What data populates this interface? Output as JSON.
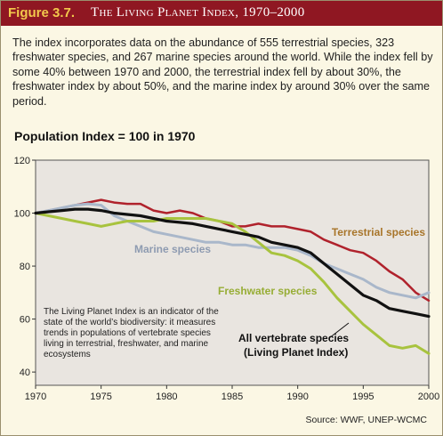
{
  "header": {
    "figure_label": "Figure 3.7.",
    "title": "The Living Planet Index, 1970–2000"
  },
  "description": "The index incorporates data on the abundance of 555 terrestrial species, 323 freshwater species, and 267 marine species around the world. While the index fell by some 40% between 1970 and 2000, the terrestrial index fell by about 30%, the freshwater index by about 50%, and the marine index by around 30% over the same period.",
  "subtitle": "Population Index = 100 in 1970",
  "source": "Source: WWF, UNEP-WCMC",
  "colors": {
    "terrestrial": "#b0222c",
    "marine": "#a9b7ca",
    "freshwater": "#a8c33e",
    "vertebrate": "#111111",
    "plot_background": "#e9e5e0",
    "terrestrial_label": "#a8752a",
    "marine_label": "#8e9bb1",
    "freshwater_label": "#97ad35"
  },
  "chart_data": {
    "type": "line",
    "title": "Population Index = 100 in 1970",
    "xlim": [
      1970,
      2000
    ],
    "ylim": [
      35,
      120
    ],
    "x_ticks": [
      1970,
      1975,
      1980,
      1985,
      1990,
      1995,
      2000
    ],
    "y_ticks": [
      40,
      60,
      80,
      100,
      120
    ],
    "grid": false,
    "series": [
      {
        "name": "Terrestrial species",
        "color_key": "terrestrial",
        "x": [
          1970,
          1971,
          1972,
          1973,
          1974,
          1975,
          1976,
          1977,
          1978,
          1979,
          1980,
          1981,
          1982,
          1983,
          1984,
          1985,
          1986,
          1987,
          1988,
          1989,
          1990,
          1991,
          1992,
          1993,
          1994,
          1995,
          1996,
          1997,
          1998,
          1999,
          2000
        ],
        "y": [
          100,
          101,
          102,
          103,
          104,
          105,
          104,
          103.5,
          103.5,
          101,
          100,
          101,
          100,
          98,
          97,
          95,
          95,
          96,
          95,
          95,
          94,
          93,
          90,
          88,
          86,
          85,
          82,
          78,
          75,
          70,
          67
        ]
      },
      {
        "name": "Marine species",
        "color_key": "marine",
        "x": [
          1970,
          1971,
          1972,
          1973,
          1974,
          1975,
          1976,
          1977,
          1978,
          1979,
          1980,
          1981,
          1982,
          1983,
          1984,
          1985,
          1986,
          1987,
          1988,
          1989,
          1990,
          1991,
          1992,
          1993,
          1994,
          1995,
          1996,
          1997,
          1998,
          1999,
          2000
        ],
        "y": [
          100,
          101,
          102,
          103,
          103.5,
          103,
          99,
          97,
          95,
          93,
          92,
          91,
          90,
          89,
          89,
          88,
          88,
          87,
          87,
          87,
          86,
          84,
          81,
          79,
          77,
          75,
          72,
          70,
          69,
          68,
          70
        ]
      },
      {
        "name": "Freshwater species",
        "color_key": "freshwater",
        "x": [
          1970,
          1971,
          1972,
          1973,
          1974,
          1975,
          1976,
          1977,
          1978,
          1979,
          1980,
          1981,
          1982,
          1983,
          1984,
          1985,
          1986,
          1987,
          1988,
          1989,
          1990,
          1991,
          1992,
          1993,
          1994,
          1995,
          1996,
          1997,
          1998,
          1999,
          2000
        ],
        "y": [
          100,
          99,
          98,
          97,
          96,
          95,
          96,
          97,
          97,
          97,
          98,
          98,
          98,
          98,
          97,
          96,
          93,
          89,
          85,
          84,
          82,
          79,
          74,
          68,
          63,
          58,
          54,
          50,
          49,
          50,
          47
        ]
      },
      {
        "name": "All vertebrate species (Living Planet Index)",
        "color_key": "vertebrate",
        "x": [
          1970,
          1971,
          1972,
          1973,
          1974,
          1975,
          1976,
          1977,
          1978,
          1979,
          1980,
          1981,
          1982,
          1983,
          1984,
          1985,
          1986,
          1987,
          1988,
          1989,
          1990,
          1991,
          1992,
          1993,
          1994,
          1995,
          1996,
          1997,
          1998,
          1999,
          2000
        ],
        "y": [
          100,
          100.5,
          101,
          101.5,
          101.5,
          101,
          100,
          99.5,
          99,
          98,
          97,
          96.5,
          96,
          95,
          94,
          93,
          92,
          91,
          89,
          88,
          87,
          85,
          81,
          77,
          73,
          69,
          67,
          64,
          63,
          62,
          61
        ]
      }
    ],
    "series_labels": [
      {
        "text": "Terrestrial species",
        "color_key": "terrestrial_label"
      },
      {
        "text": "Marine species",
        "color_key": "marine_label"
      },
      {
        "text": "Freshwater species",
        "color_key": "freshwater_label"
      },
      {
        "text": "All vertebrate species",
        "color_key": "vertebrate"
      },
      {
        "text": "(Living Planet Index)",
        "color_key": "vertebrate"
      }
    ],
    "annotation": "The Living Planet Index is an indicator of the state of the world’s biodiversity: it measures trends in populations of vertebrate species living in terrestrial, freshwater, and marine ecosystems"
  }
}
